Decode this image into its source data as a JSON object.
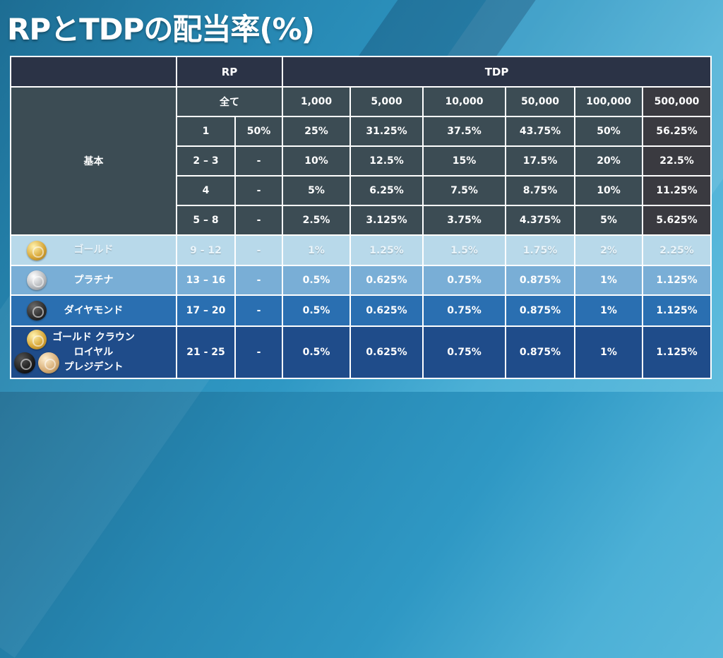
{
  "title": "RPとTDPの配当率(%)",
  "colors": {
    "header": "#2b3346",
    "base": "#3c4c54",
    "gold_row": "#b8d9ea",
    "platinum_row": "#79aed6",
    "diamond_row": "#2a6fb1",
    "crown_row": "#1f4c8a"
  },
  "header": {
    "rp": "RP",
    "tdp": "TDP"
  },
  "subheader": {
    "all": "全て",
    "tdp_levels": [
      "1,000",
      "5,000",
      "10,000",
      "50,000",
      "100,000",
      "500,000"
    ]
  },
  "base_group": {
    "label": "基本",
    "rows": [
      {
        "rp_range": "1",
        "rp_rate": "50%",
        "tdp": [
          "25%",
          "31.25%",
          "37.5%",
          "43.75%",
          "50%",
          "56.25%"
        ]
      },
      {
        "rp_range": "2 – 3",
        "rp_rate": "-",
        "tdp": [
          "10%",
          "12.5%",
          "15%",
          "17.5%",
          "20%",
          "22.5%"
        ]
      },
      {
        "rp_range": "4",
        "rp_rate": "-",
        "tdp": [
          "5%",
          "6.25%",
          "7.5%",
          "8.75%",
          "10%",
          "11.25%"
        ]
      },
      {
        "rp_range": "5 – 8",
        "rp_rate": "-",
        "tdp": [
          "2.5%",
          "3.125%",
          "3.75%",
          "4.375%",
          "5%",
          "5.625%"
        ]
      }
    ]
  },
  "tiers": [
    {
      "name_lines": [
        "ゴールド"
      ],
      "icon": "gold-medal-icon",
      "rp_range": "9 - 12",
      "rp_rate": "-",
      "tdp": [
        "1%",
        "1.25%",
        "1.5%",
        "1.75%",
        "2%",
        "2.25%"
      ]
    },
    {
      "name_lines": [
        "プラチナ"
      ],
      "icon": "platinum-medal-icon",
      "rp_range": "13 – 16",
      "rp_rate": "-",
      "tdp": [
        "0.5%",
        "0.625%",
        "0.75%",
        "0.875%",
        "1%",
        "1.125%"
      ]
    },
    {
      "name_lines": [
        "ダイヤモンド"
      ],
      "icon": "diamond-medal-icon",
      "rp_range": "17 – 20",
      "rp_rate": "-",
      "tdp": [
        "0.5%",
        "0.625%",
        "0.75%",
        "0.875%",
        "1%",
        "1.125%"
      ]
    },
    {
      "name_lines": [
        "ゴールド クラウン",
        "ロイヤル",
        "プレジデント"
      ],
      "icon": "crown-royal-president-medals-icon",
      "rp_range": "21 - 25",
      "rp_rate": "-",
      "tdp": [
        "0.5%",
        "0.625%",
        "0.75%",
        "0.875%",
        "1%",
        "1.125%"
      ]
    }
  ]
}
